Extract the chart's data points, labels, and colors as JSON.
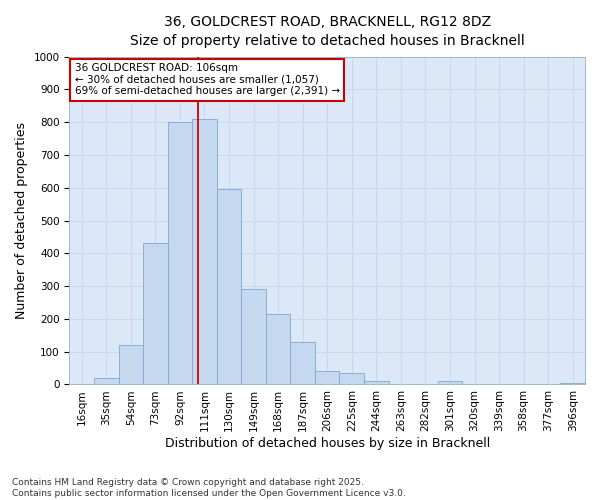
{
  "title_line1": "36, GOLDCREST ROAD, BRACKNELL, RG12 8DZ",
  "title_line2": "Size of property relative to detached houses in Bracknell",
  "xlabel": "Distribution of detached houses by size in Bracknell",
  "ylabel": "Number of detached properties",
  "categories": [
    "16sqm",
    "35sqm",
    "54sqm",
    "73sqm",
    "92sqm",
    "111sqm",
    "130sqm",
    "149sqm",
    "168sqm",
    "187sqm",
    "206sqm",
    "225sqm",
    "244sqm",
    "263sqm",
    "282sqm",
    "301sqm",
    "320sqm",
    "339sqm",
    "358sqm",
    "377sqm",
    "396sqm"
  ],
  "bar_heights": [
    0,
    20,
    120,
    430,
    800,
    810,
    595,
    290,
    215,
    130,
    40,
    35,
    10,
    0,
    0,
    10,
    0,
    0,
    0,
    0,
    5
  ],
  "bar_color": "#c5d8f0",
  "bar_edge_color": "#7aaad0",
  "grid_color": "#c8d8ec",
  "background_color": "#dce8f8",
  "fig_background": "#ffffff",
  "vline_color": "#cc0000",
  "annotation_text": "36 GOLDCREST ROAD: 106sqm\n← 30% of detached houses are smaller (1,057)\n69% of semi-detached houses are larger (2,391) →",
  "annotation_box_color": "#cc0000",
  "ylim": [
    0,
    1000
  ],
  "yticks": [
    0,
    100,
    200,
    300,
    400,
    500,
    600,
    700,
    800,
    900,
    1000
  ],
  "footnote": "Contains HM Land Registry data © Crown copyright and database right 2025.\nContains public sector information licensed under the Open Government Licence v3.0.",
  "title_fontsize": 10,
  "subtitle_fontsize": 9,
  "axis_label_fontsize": 9,
  "tick_fontsize": 7.5,
  "annotation_fontsize": 7.5,
  "footnote_fontsize": 6.5
}
